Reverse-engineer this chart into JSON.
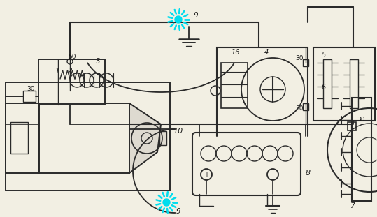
{
  "bg_color": "#f2efe3",
  "line_color": "#2a2a2a",
  "cyan_color": "#00ddee",
  "label_color": "#1a1a1a",
  "fig_w": 5.39,
  "fig_h": 3.11,
  "dpi": 100
}
